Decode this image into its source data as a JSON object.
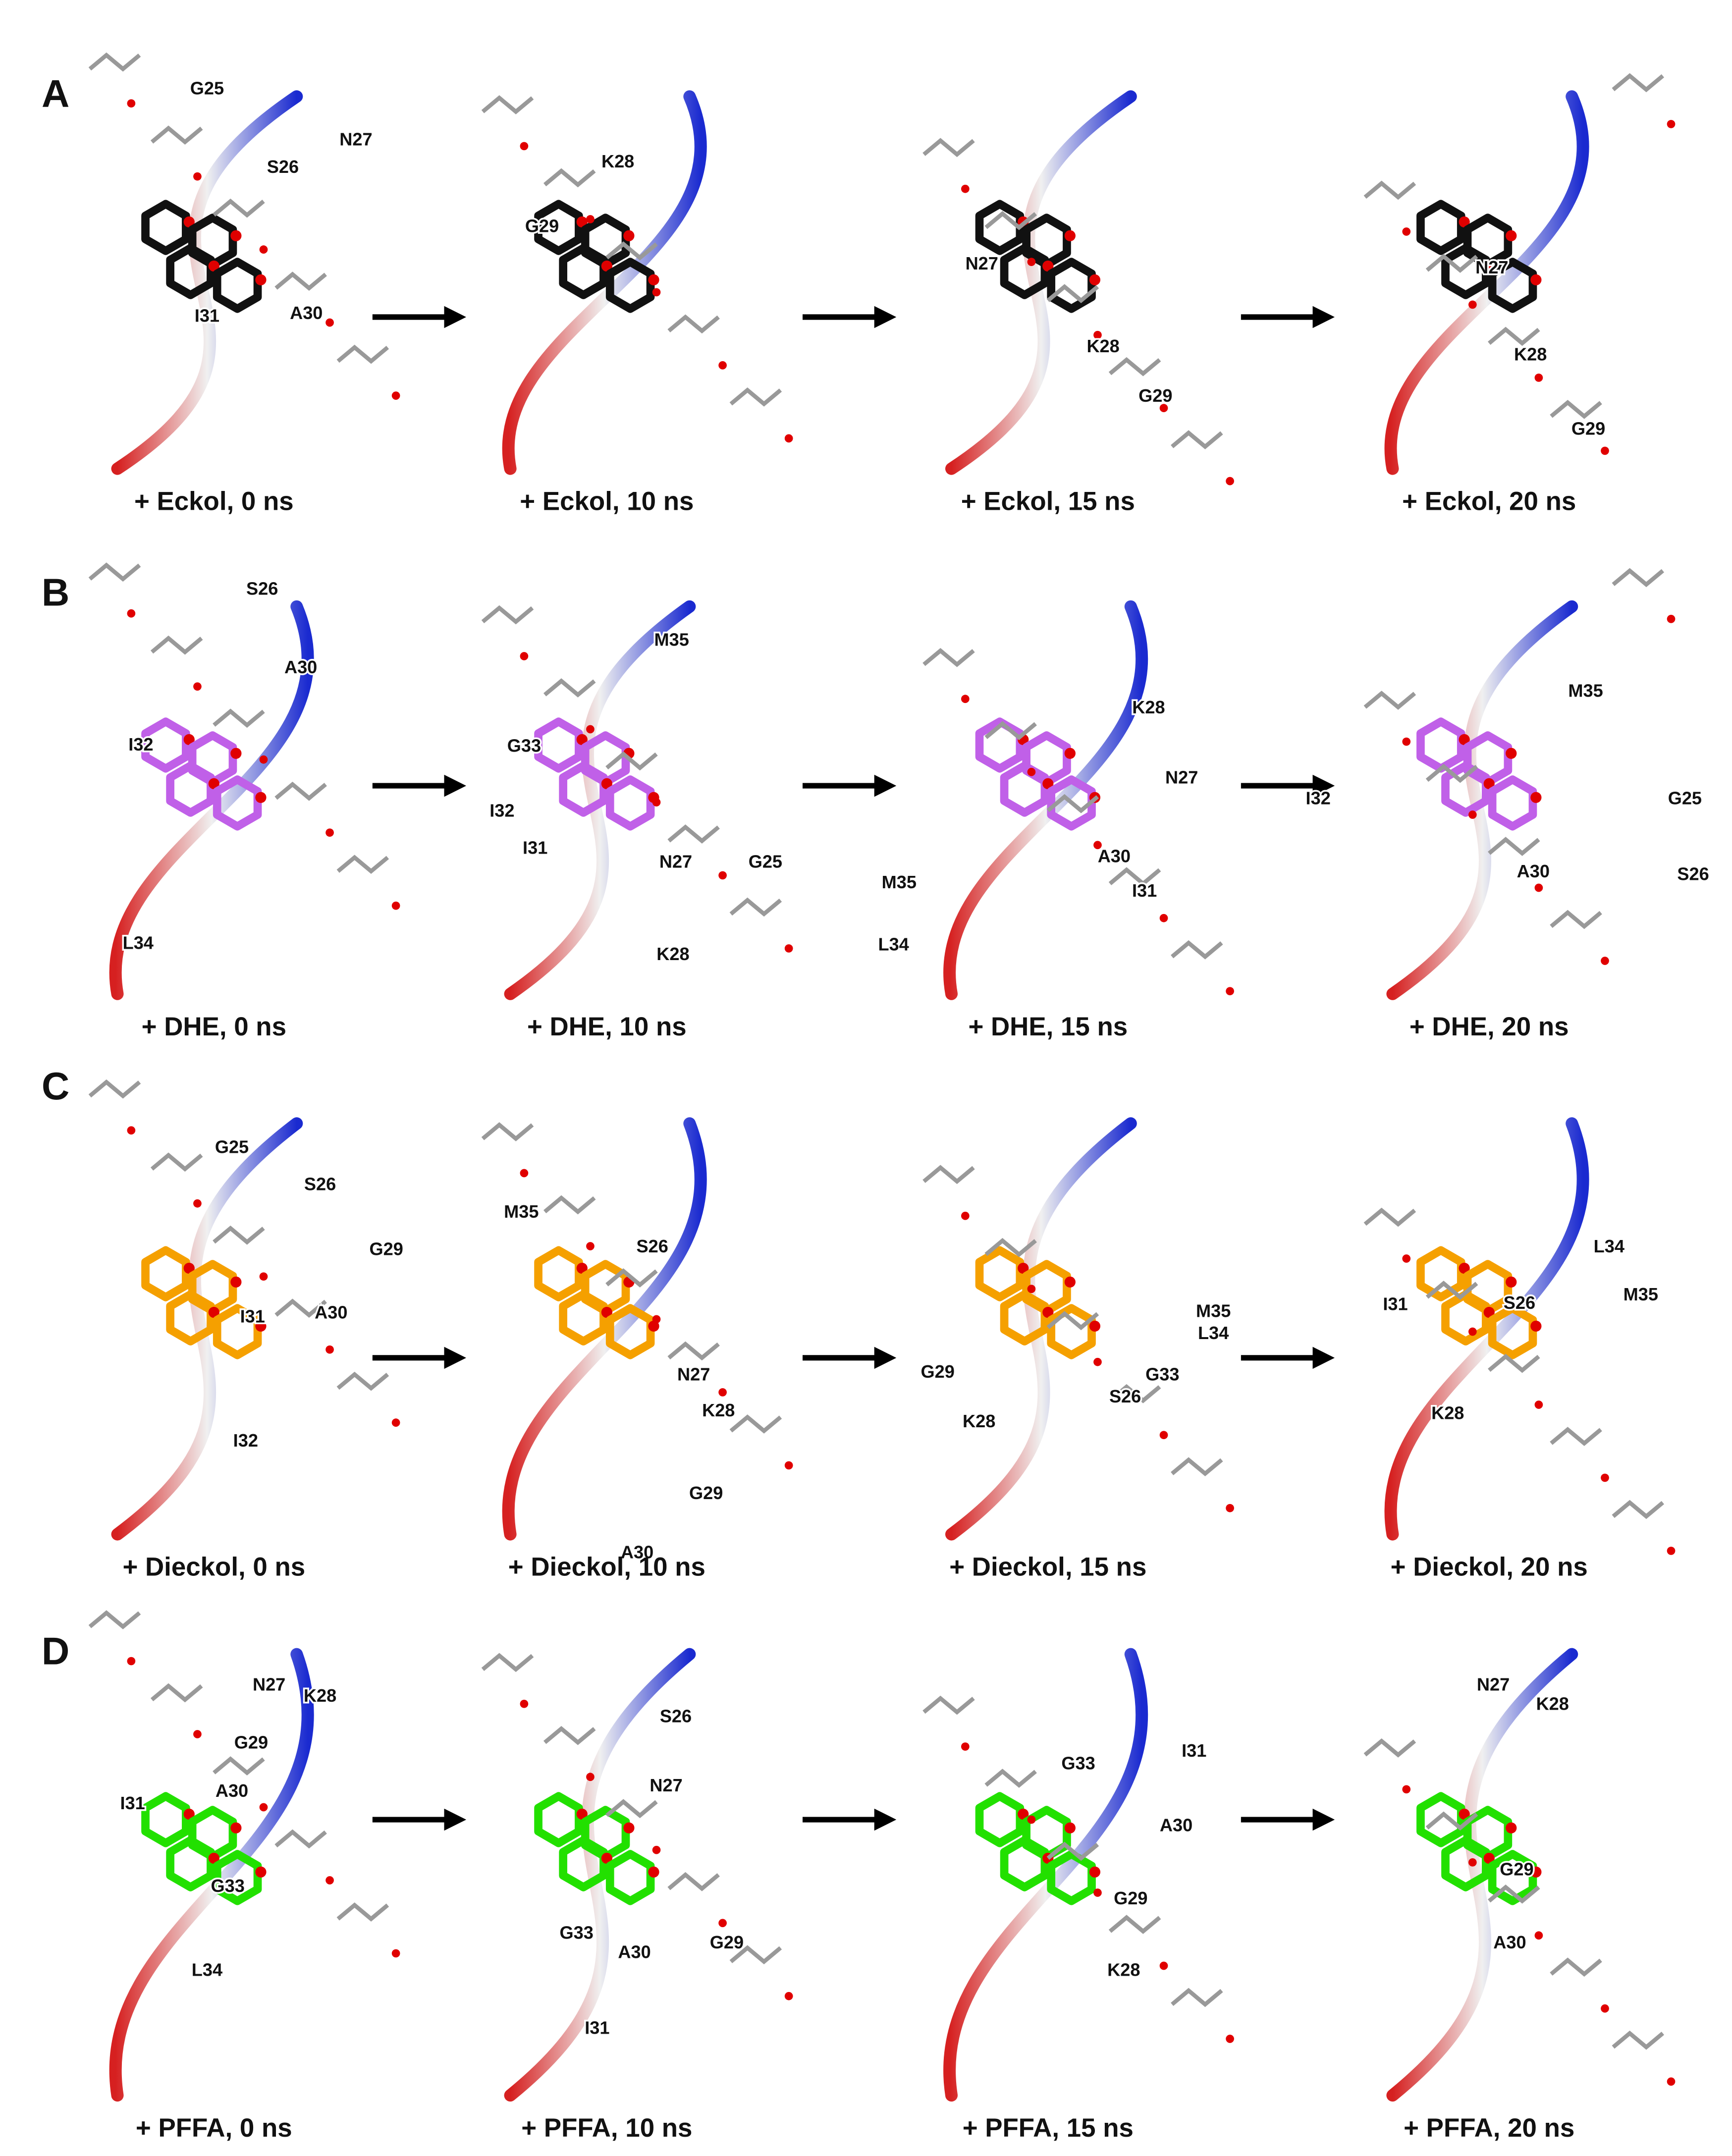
{
  "panels": [
    {
      "letter": "A",
      "frames": [
        {
          "caption": "+ Eckol, 0 ns",
          "residues": [
            "G25",
            "S26",
            "N27",
            "I31",
            "A30"
          ]
        },
        {
          "caption": "+ Eckol, 10 ns",
          "residues": [
            "K28",
            "G29"
          ]
        },
        {
          "caption": "+ Eckol, 15 ns",
          "residues": [
            "N27",
            "K28",
            "G29"
          ]
        },
        {
          "caption": "+ Eckol, 20 ns",
          "residues": [
            "N27",
            "K28",
            "G29"
          ]
        }
      ]
    },
    {
      "letter": "B",
      "frames": [
        {
          "caption": "+ DHE, 0 ns",
          "residues": [
            "S26",
            "A30",
            "I32",
            "L34"
          ]
        },
        {
          "caption": "+ DHE, 10 ns",
          "residues": [
            "M35",
            "G33",
            "I32",
            "I31",
            "N27",
            "G25",
            "K28"
          ]
        },
        {
          "caption": "+ DHE, 15 ns",
          "residues": [
            "K28",
            "N27",
            "M35",
            "A30",
            "I31",
            "L34"
          ]
        },
        {
          "caption": "+ DHE, 20 ns",
          "residues": [
            "M35",
            "I32",
            "G25",
            "A30",
            "S26"
          ]
        }
      ]
    },
    {
      "letter": "C",
      "frames": [
        {
          "caption": "+ Dieckol, 0 ns",
          "residues": [
            "G25",
            "S26",
            "G29",
            "I31",
            "A30",
            "I32"
          ]
        },
        {
          "caption": "+ Dieckol, 10 ns",
          "residues": [
            "M35",
            "S26",
            "N27",
            "K28",
            "G29",
            "A30"
          ]
        },
        {
          "caption": "+ Dieckol, 15 ns",
          "residues": [
            "M35",
            "L34",
            "G33",
            "G29",
            "S26",
            "K28"
          ]
        },
        {
          "caption": "+ Dieckol, 20 ns",
          "residues": [
            "L34",
            "M35",
            "I31",
            "S26",
            "K28"
          ]
        }
      ]
    },
    {
      "letter": "D",
      "frames": [
        {
          "caption": "+ PFFA, 0 ns",
          "residues": [
            "N27",
            "K28",
            "G29",
            "I31",
            "A30",
            "G33",
            "L34"
          ]
        },
        {
          "caption": "+ PFFA, 10 ns",
          "residues": [
            "S26",
            "N27",
            "G33",
            "A30",
            "G29",
            "I31"
          ]
        },
        {
          "caption": "+ PFFA, 15 ns",
          "residues": [
            "I31",
            "G33",
            "A30",
            "G29",
            "K28"
          ]
        },
        {
          "caption": "+ PFFA, 20 ns",
          "residues": [
            "N27",
            "K28",
            "G29",
            "A30"
          ]
        }
      ]
    }
  ]
}
